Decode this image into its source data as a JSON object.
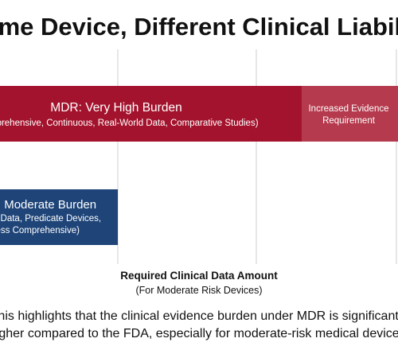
{
  "chart_data": {
    "type": "bar",
    "title": "Same Device, Different Clinical Liability",
    "xlabel": "Required Clinical Data Amount",
    "xlabel_sub": "(For Moderate Risk Devices)",
    "grid": true,
    "orientation": "horizontal",
    "xlim": [
      0,
      100
    ],
    "series": [
      {
        "name": "MDR: Very High Burden",
        "detail": "(Comprehensive, Continuous, Real-World Data, Comparative Studies)",
        "value": 100,
        "color": "#a4132d",
        "extra_segment": {
          "label_line1": "Increased Evidence",
          "label_line2": "Requirement",
          "from": 77,
          "to": 100,
          "color": "#b53a4d"
        }
      },
      {
        "name": "FDA: Moderate Burden",
        "detail_line1": "(Bench Data, Predicate Devices,",
        "detail_line2": "Less Comprehensive)",
        "value": 36,
        "color": "#1e4478"
      }
    ],
    "caption_line1": "This highlights that the clinical evidence burden under MDR is significantly",
    "caption_line2": "higher compared to the FDA, especially for moderate-risk medical devices."
  }
}
